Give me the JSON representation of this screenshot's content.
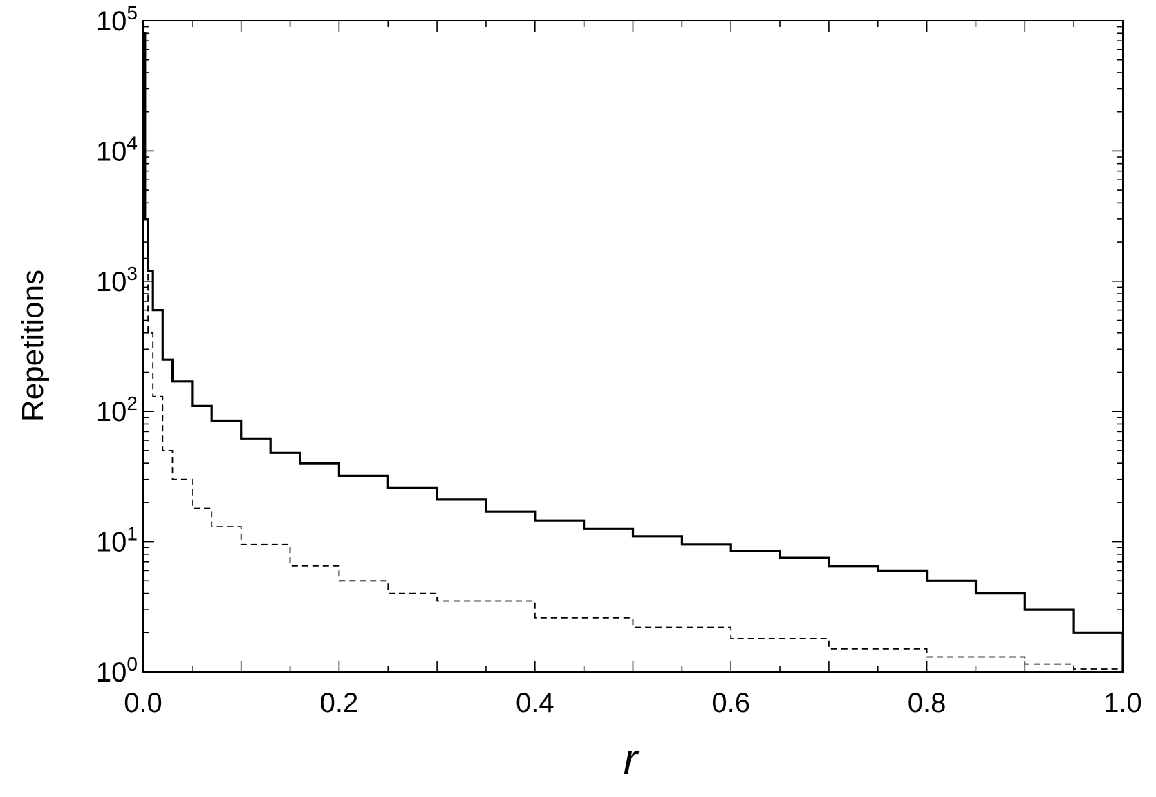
{
  "chart_data": {
    "type": "line",
    "step": true,
    "title": "",
    "xlabel": "r",
    "ylabel": "Repetitions",
    "xlim": [
      0.0,
      1.0
    ],
    "ylim": [
      1,
      100000
    ],
    "yscale": "log",
    "grid": false,
    "x_tick_labels": [
      "0.0",
      "0.2",
      "0.4",
      "0.6",
      "0.8",
      "1.0"
    ],
    "y_tick_labels": [
      {
        "base": "10",
        "exp": "0"
      },
      {
        "base": "10",
        "exp": "1"
      },
      {
        "base": "10",
        "exp": "2"
      },
      {
        "base": "10",
        "exp": "3"
      },
      {
        "base": "10",
        "exp": "4"
      },
      {
        "base": "10",
        "exp": "5"
      }
    ],
    "series": [
      {
        "style": "solid",
        "color": "#000000",
        "x": [
          0.0,
          0.002,
          0.005,
          0.01,
          0.02,
          0.03,
          0.05,
          0.07,
          0.1,
          0.13,
          0.16,
          0.2,
          0.25,
          0.3,
          0.35,
          0.4,
          0.45,
          0.5,
          0.55,
          0.6,
          0.65,
          0.7,
          0.75,
          0.8,
          0.85,
          0.9,
          0.95,
          0.97,
          1.0
        ],
        "y": [
          80000,
          3000,
          1200,
          600,
          250,
          170,
          110,
          85,
          62,
          48,
          40,
          32,
          26,
          21,
          17,
          14.5,
          12.5,
          11,
          9.5,
          8.5,
          7.5,
          6.5,
          6,
          5,
          4,
          3,
          2,
          2,
          1
        ]
      },
      {
        "style": "dashed",
        "color": "#000000",
        "x": [
          0.0,
          0.005,
          0.01,
          0.02,
          0.03,
          0.05,
          0.07,
          0.1,
          0.15,
          0.2,
          0.25,
          0.3,
          0.4,
          0.5,
          0.6,
          0.7,
          0.8,
          0.9,
          0.95,
          1.0
        ],
        "y": [
          1500,
          400,
          130,
          50,
          30,
          18,
          13,
          9.5,
          6.5,
          5,
          4,
          3.5,
          2.6,
          2.2,
          1.8,
          1.5,
          1.3,
          1.15,
          1.05,
          1.0
        ]
      }
    ]
  }
}
